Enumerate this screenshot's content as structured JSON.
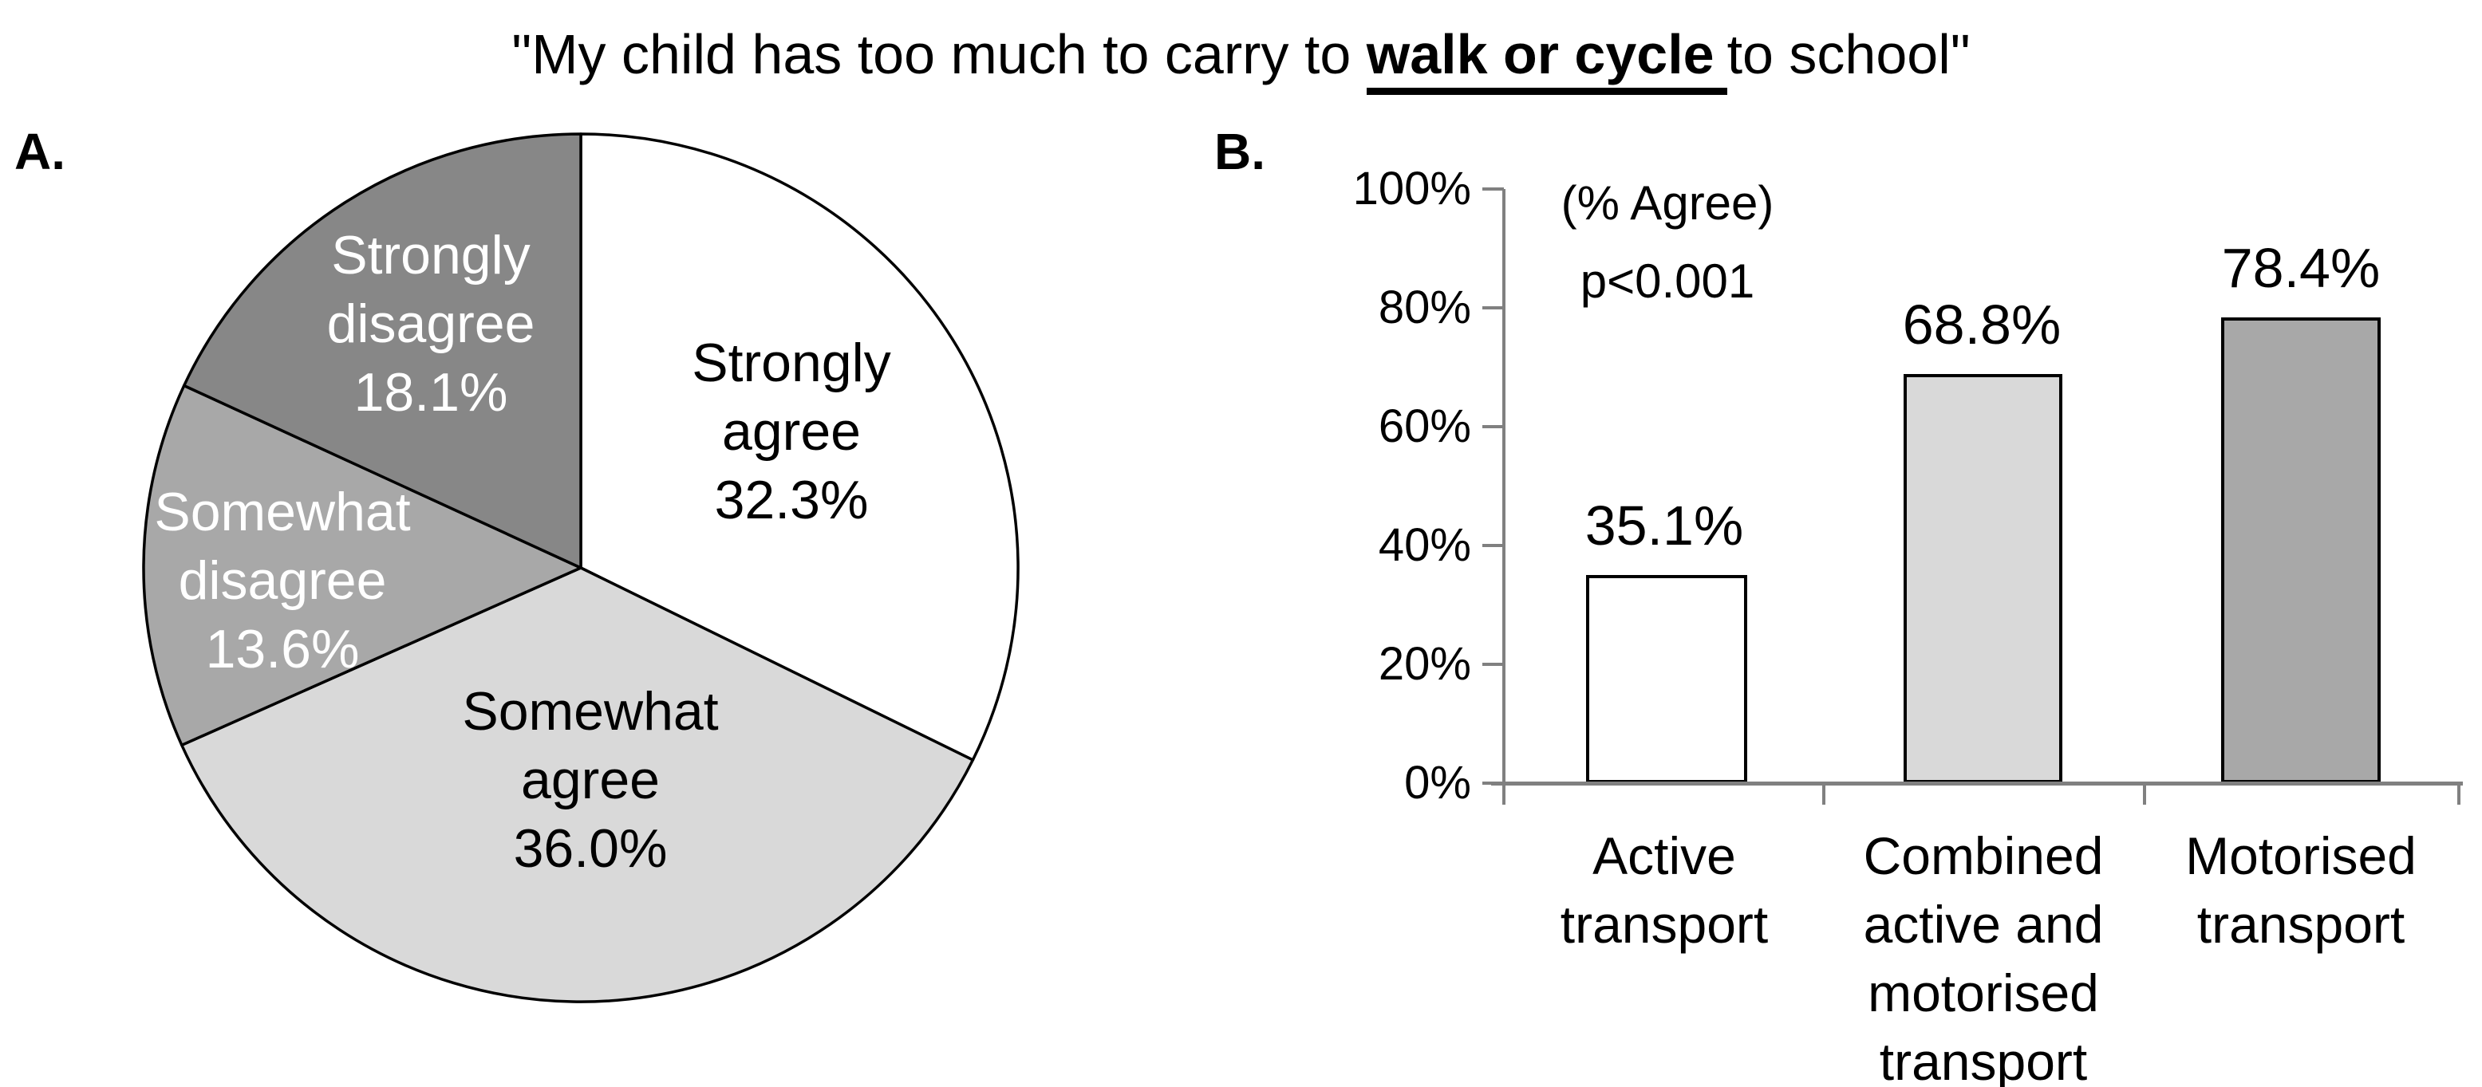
{
  "figure_title": {
    "prefix": "\"My child has too much to carry to ",
    "emphasis": "walk or cycle",
    "suffix": "to school\""
  },
  "panels": {
    "a_label": "A.",
    "b_label": "B."
  },
  "colors": {
    "white_fill": "#ffffff",
    "light_gray": "#d9d9d9",
    "medium_gray": "#a8a8a8",
    "dark_gray": "#878787",
    "axis_gray": "#808080",
    "outline_black": "#000000"
  },
  "chart_data": [
    {
      "type": "pie",
      "panel": "A",
      "direction": "clockwise",
      "start_angle": "12-o-clock",
      "slices": [
        {
          "label": "Strongly agree",
          "value": 32.3,
          "color": "#ffffff",
          "text_color": "#000000",
          "lines": [
            "Strongly",
            "agree",
            "32.3%"
          ]
        },
        {
          "label": "Somewhat agree",
          "value": 36.0,
          "color": "#d9d9d9",
          "text_color": "#000000",
          "lines": [
            "Somewhat",
            "agree",
            "36.0%"
          ]
        },
        {
          "label": "Somewhat disagree",
          "value": 13.6,
          "color": "#a8a8a8",
          "text_color": "#ffffff",
          "lines": [
            "Somewhat",
            "disagree",
            "13.6%"
          ]
        },
        {
          "label": "Strongly disagree",
          "value": 18.1,
          "color": "#878787",
          "text_color": "#ffffff",
          "lines": [
            "Strongly",
            "disagree",
            "18.1%"
          ]
        }
      ]
    },
    {
      "type": "bar",
      "panel": "B",
      "annotations": [
        "(% Agree)",
        "p<0.001"
      ],
      "categories": [
        "Active transport",
        "Combined active and motorised transport",
        "Motorised transport"
      ],
      "category_lines": [
        [
          "Active",
          "transport"
        ],
        [
          "Combined",
          "active and",
          "motorised",
          "transport"
        ],
        [
          "Motorised",
          "transport"
        ]
      ],
      "values": [
        35.1,
        68.8,
        78.4
      ],
      "value_labels": [
        "35.1%",
        "68.8%",
        "78.4%"
      ],
      "bar_colors": [
        "#ffffff",
        "#d9d9d9",
        "#a8a8a8"
      ],
      "ylim": [
        0,
        100
      ],
      "ytick_labels": [
        "0%",
        "20%",
        "40%",
        "60%",
        "80%",
        "100%"
      ],
      "grid": false,
      "legend": false
    }
  ]
}
